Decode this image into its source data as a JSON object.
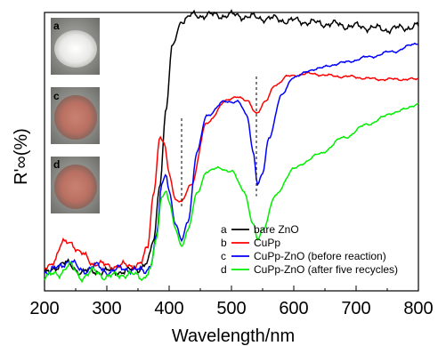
{
  "chart_data": {
    "type": "line",
    "title": "",
    "xlabel": "Wavelength/nm",
    "ylabel": "R'∞(%)",
    "xlim": [
      200,
      800
    ],
    "ylim": [
      0,
      100
    ],
    "x_ticks": [
      200,
      300,
      400,
      500,
      600,
      700,
      800
    ],
    "y_ticks_shown": false,
    "grid": false,
    "legend_position": "bottom-right",
    "colors": {
      "a": "#000000",
      "b": "#ff0000",
      "c": "#0000ff",
      "d": "#00ee00"
    },
    "series": [
      {
        "name": "bare ZnO",
        "letter": "a",
        "color": "#000000",
        "x": [
          200,
          230,
          260,
          300,
          330,
          350,
          365,
          375,
          385,
          395,
          405,
          420,
          440,
          460,
          500,
          550,
          600,
          650,
          700,
          750,
          800
        ],
        "y": [
          6,
          10,
          7,
          7,
          7,
          8,
          10,
          18,
          38,
          65,
          88,
          97,
          99,
          99,
          99,
          98,
          97,
          96,
          95,
          94,
          95
        ]
      },
      {
        "name": "CuPp",
        "letter": "b",
        "color": "#ff0000",
        "x": [
          200,
          215,
          230,
          240,
          260,
          280,
          300,
          320,
          340,
          355,
          365,
          375,
          385,
          392,
          400,
          410,
          420,
          435,
          460,
          490,
          510,
          525,
          540,
          555,
          570,
          590,
          620,
          680,
          740,
          800
        ],
        "y": [
          8,
          11,
          17,
          18,
          13,
          10,
          9,
          9,
          9,
          10,
          15,
          35,
          55,
          53,
          42,
          33,
          32,
          38,
          60,
          68,
          70,
          68,
          64,
          68,
          74,
          77,
          78,
          77,
          76,
          76
        ]
      },
      {
        "name": "CuPp-ZnO (before reaction)",
        "letter": "c",
        "color": "#0000ff",
        "x": [
          200,
          220,
          240,
          260,
          280,
          300,
          330,
          360,
          370,
          380,
          388,
          395,
          400,
          410,
          420,
          430,
          445,
          460,
          490,
          510,
          525,
          535,
          542,
          550,
          560,
          580,
          600,
          640,
          680,
          720,
          760,
          800
        ],
        "y": [
          7,
          8,
          11,
          7,
          9,
          7,
          8,
          7,
          9,
          20,
          38,
          42,
          36,
          24,
          18,
          25,
          50,
          63,
          68,
          68,
          63,
          50,
          38,
          42,
          55,
          70,
          77,
          80,
          82,
          84,
          86,
          89
        ]
      },
      {
        "name": "CuPp-ZnO (after five recycles)",
        "letter": "d",
        "color": "#00ee00",
        "x": [
          200,
          220,
          240,
          260,
          280,
          300,
          330,
          360,
          370,
          380,
          388,
          395,
          400,
          410,
          420,
          430,
          445,
          460,
          480,
          500,
          520,
          535,
          542,
          550,
          570,
          600,
          640,
          680,
          720,
          760,
          800
        ],
        "y": [
          5,
          6,
          9,
          5,
          7,
          5,
          6,
          5,
          8,
          19,
          34,
          36,
          32,
          22,
          16,
          22,
          35,
          43,
          44,
          43,
          36,
          24,
          18,
          22,
          34,
          44,
          49,
          55,
          60,
          64,
          67
        ]
      }
    ],
    "annotations": {
      "dashed_lines_x": [
        420,
        540
      ],
      "insets": [
        "a",
        "c",
        "d"
      ]
    }
  }
}
